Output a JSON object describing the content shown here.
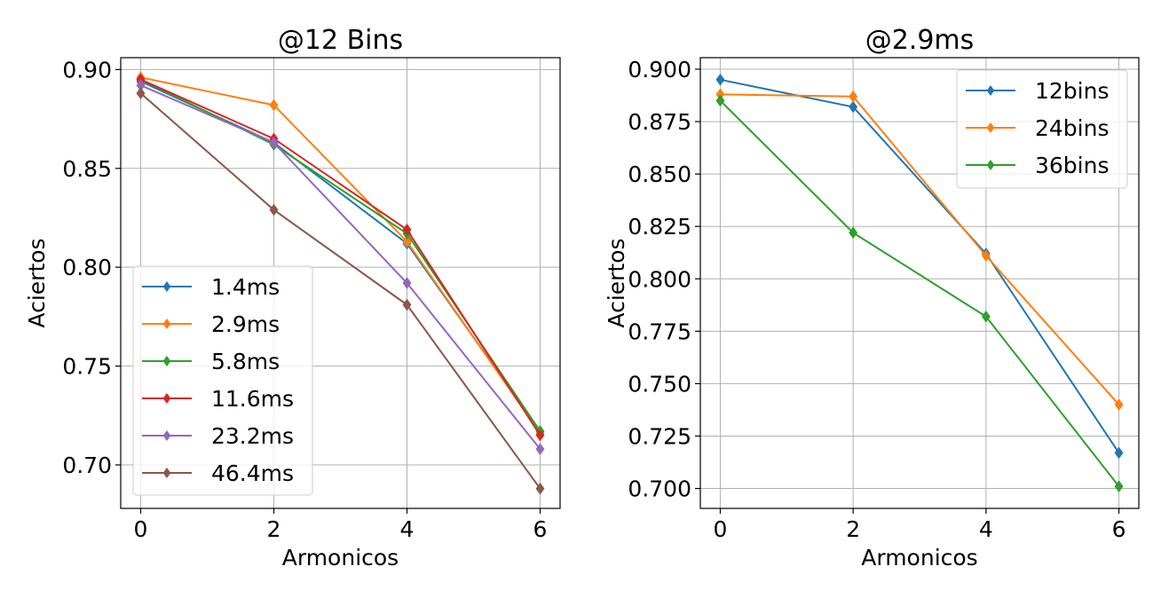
{
  "chart_data": [
    {
      "type": "line",
      "title": "@12 Bins",
      "xlabel": "Armonicos",
      "ylabel": "Aciertos",
      "x": [
        0,
        2,
        4,
        6
      ],
      "xlim": [
        -0.3,
        6.3
      ],
      "ylim": [
        0.678,
        0.906
      ],
      "xticks": [
        0,
        2,
        4,
        6
      ],
      "xtick_labels": [
        "0",
        "2",
        "4",
        "6"
      ],
      "yticks": [
        0.7,
        0.75,
        0.8,
        0.85,
        0.9
      ],
      "ytick_labels": [
        "0.70",
        "0.75",
        "0.80",
        "0.85",
        "0.90"
      ],
      "grid": true,
      "legend_position": "lower-left",
      "marker": "diamond",
      "series": [
        {
          "name": "1.4ms",
          "color": "#1f77b4",
          "values": [
            0.894,
            0.863,
            0.812,
            0.717
          ]
        },
        {
          "name": "2.9ms",
          "color": "#ff7f0e",
          "values": [
            0.896,
            0.882,
            0.813,
            0.716
          ]
        },
        {
          "name": "5.8ms",
          "color": "#2ca02c",
          "values": [
            0.895,
            0.862,
            0.817,
            0.717
          ]
        },
        {
          "name": "11.6ms",
          "color": "#d62728",
          "values": [
            0.895,
            0.865,
            0.819,
            0.715
          ]
        },
        {
          "name": "23.2ms",
          "color": "#9467bd",
          "values": [
            0.892,
            0.863,
            0.792,
            0.708
          ]
        },
        {
          "name": "46.4ms",
          "color": "#8c564b",
          "values": [
            0.888,
            0.829,
            0.781,
            0.688
          ]
        }
      ]
    },
    {
      "type": "line",
      "title": "@2.9ms",
      "xlabel": "Armonicos",
      "ylabel": "Aciertos",
      "x": [
        0,
        2,
        4,
        6
      ],
      "xlim": [
        -0.3,
        6.3
      ],
      "ylim": [
        0.6905,
        0.9055
      ],
      "xticks": [
        0,
        2,
        4,
        6
      ],
      "xtick_labels": [
        "0",
        "2",
        "4",
        "6"
      ],
      "yticks": [
        0.7,
        0.725,
        0.75,
        0.775,
        0.8,
        0.825,
        0.85,
        0.875,
        0.9
      ],
      "ytick_labels": [
        "0.700",
        "0.725",
        "0.750",
        "0.775",
        "0.800",
        "0.825",
        "0.850",
        "0.875",
        "0.900"
      ],
      "grid": true,
      "legend_position": "upper-right",
      "marker": "diamond",
      "series": [
        {
          "name": "12bins",
          "color": "#1f77b4",
          "values": [
            0.895,
            0.882,
            0.812,
            0.717
          ]
        },
        {
          "name": "24bins",
          "color": "#ff7f0e",
          "values": [
            0.888,
            0.887,
            0.811,
            0.74
          ]
        },
        {
          "name": "36bins",
          "color": "#2ca02c",
          "values": [
            0.885,
            0.822,
            0.782,
            0.701
          ]
        }
      ]
    }
  ]
}
